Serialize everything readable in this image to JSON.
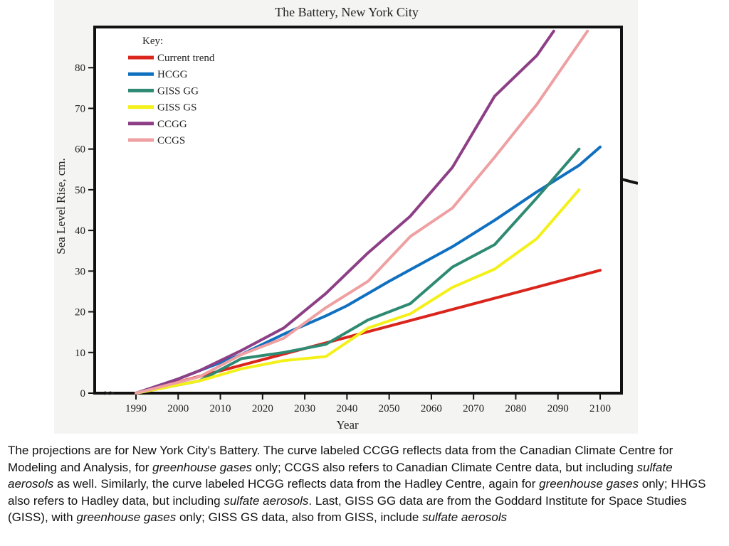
{
  "colors": {
    "current_trend": "#d9251c",
    "hcgg": "#1070c0",
    "giss_gg": "#2e8a72",
    "giss_gs": "#f4f019",
    "ccgg": "#8d3f86",
    "ccgs": "#eea0a2",
    "axis": "#111111",
    "figure_background": "#f4f4f2"
  },
  "chart_data": {
    "type": "line",
    "title": "The Battery, New York City",
    "xlabel": "Year",
    "ylabel": "Sea Level Rise, cm.",
    "xlim": [
      1985,
      2105
    ],
    "ylim": [
      0,
      90
    ],
    "x_ticks": [
      1990,
      2000,
      2010,
      2020,
      2030,
      2040,
      2050,
      2060,
      2070,
      2080,
      2090,
      2100
    ],
    "y_ticks": [
      0,
      10,
      20,
      30,
      40,
      50,
      60,
      70,
      80
    ],
    "origin_marker": ">>",
    "legend_title": "Key:",
    "legend_position": "top-left",
    "grid": false,
    "series": [
      {
        "name": "Current trend",
        "color": "#d9251c",
        "x": [
          1990,
          2100
        ],
        "y": [
          0,
          30.2
        ]
      },
      {
        "name": "HCGG",
        "color": "#1070c0",
        "x": [
          1990,
          2000,
          2005,
          2015,
          2025,
          2035,
          2040,
          2050,
          2065,
          2075,
          2085,
          2095,
          2100
        ],
        "y": [
          0,
          3.5,
          5.5,
          9.5,
          14.5,
          19,
          21.5,
          27.5,
          36,
          42.5,
          49.5,
          56,
          60.5
        ]
      },
      {
        "name": "GISS GG",
        "color": "#2e8a72",
        "x": [
          1990,
          2005,
          2015,
          2025,
          2035,
          2045,
          2055,
          2065,
          2075,
          2085,
          2095
        ],
        "y": [
          0,
          3,
          8.5,
          10,
          12,
          18,
          22,
          31,
          36.5,
          48,
          60
        ]
      },
      {
        "name": "GISS GS",
        "color": "#f4f019",
        "x": [
          1990,
          2005,
          2015,
          2025,
          2035,
          2045,
          2055,
          2065,
          2075,
          2085,
          2095
        ],
        "y": [
          0,
          3,
          6,
          8,
          9,
          16,
          19.5,
          26,
          30.5,
          38,
          50
        ]
      },
      {
        "name": "CCGG",
        "color": "#8d3f86",
        "x": [
          1990,
          2000,
          2005,
          2015,
          2025,
          2035,
          2045,
          2055,
          2065,
          2075,
          2085,
          2089
        ],
        "y": [
          0,
          3.5,
          5.5,
          10.5,
          16,
          24.5,
          34.5,
          43.5,
          55.5,
          73,
          83,
          89
        ]
      },
      {
        "name": "CCGS",
        "color": "#eea0a2",
        "x": [
          1990,
          2005,
          2015,
          2025,
          2035,
          2045,
          2055,
          2065,
          2075,
          2085,
          2097
        ],
        "y": [
          0,
          4,
          9.5,
          13.5,
          21,
          27.5,
          38.5,
          45.5,
          58,
          71,
          89
        ]
      }
    ]
  },
  "caption": {
    "p1": "The projections are for New York City's Battery. The curve labeled CCGG reflects data from the Canadian Climate Centre for Modeling and Analysis, for ",
    "e1": "greenhouse gases",
    "p2": " only; CCGS also refers to Canadian Climate Centre data, but including ",
    "e2": "sulfate aerosols",
    "p3": " as well. Similarly, the curve labeled HCGG reflects data from the Hadley Centre, again for ",
    "e3": "greenhouse gases",
    "p4": " only; HHGS also refers to Hadley data, but including ",
    "e4": "sulfate aerosols",
    "p5": ". Last, GISS GG data are from the Goddard Institute for Space Studies (GISS), with ",
    "e5": "greenhouse gases",
    "p6": " only; GISS GS data, also from GISS, include ",
    "e6": "sulfate aerosols"
  }
}
